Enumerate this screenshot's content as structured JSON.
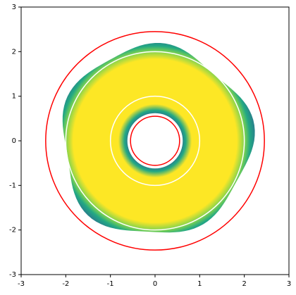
{
  "chart_data": {
    "type": "circles",
    "xlim": [
      -3,
      3
    ],
    "ylim": [
      -3,
      3
    ],
    "xticks": [
      -3,
      -2,
      -1,
      0,
      1,
      2,
      3
    ],
    "yticks": [
      -3,
      -2,
      -1,
      0,
      1,
      2,
      3
    ],
    "circles": [
      {
        "r": 0.55,
        "color": "#ff0000"
      },
      {
        "r": 2.45,
        "color": "#ff0000"
      },
      {
        "r": 1,
        "color": "#ffffff"
      },
      {
        "r": 2,
        "color": "#ffffff"
      }
    ]
  }
}
